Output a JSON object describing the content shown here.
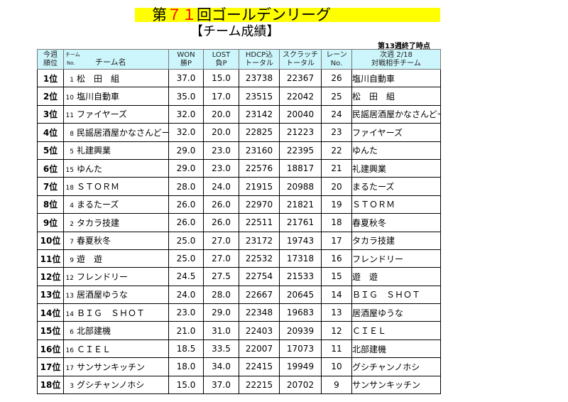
{
  "header": {
    "title_prefix": "第",
    "title_number": "７１",
    "title_suffix": "回ゴールデンリーグ",
    "subtitle": "【チーム成績】",
    "as_of": "第13週終了時点",
    "accent_color": "#ff0000",
    "title_bg": "#ffff00"
  },
  "table": {
    "header_bg": "#ccf6fb",
    "columns": {
      "rank": [
        "今週",
        "順位"
      ],
      "team_no": [
        "チーム",
        "No."
      ],
      "team_name": "チーム名",
      "won": [
        "WON",
        "勝P"
      ],
      "lost": [
        "LOST",
        "負P"
      ],
      "hdcp": [
        "HDCP込",
        "トータル"
      ],
      "scratch": [
        "スクラッチ",
        "トータル"
      ],
      "lane": [
        "レーン",
        "No."
      ],
      "opponent": [
        "次週 2/18",
        "対戦相手チーム"
      ]
    },
    "rows": [
      {
        "rank": "1位",
        "no": "1",
        "name": "松　田　組",
        "won": "37.0",
        "lost": "15.0",
        "hdcp": "23738",
        "scratch": "22367",
        "lane": "26",
        "opponent": "塩川自動車"
      },
      {
        "rank": "2位",
        "no": "10",
        "name": "塩川自動車",
        "won": "35.0",
        "lost": "17.0",
        "hdcp": "23515",
        "scratch": "22042",
        "lane": "25",
        "opponent": "松　田　組"
      },
      {
        "rank": "3位",
        "no": "11",
        "name": "ファイヤーズ",
        "won": "32.0",
        "lost": "20.0",
        "hdcp": "23142",
        "scratch": "20040",
        "lane": "24",
        "opponent": "民謡居酒屋かなさんどー"
      },
      {
        "rank": "4位",
        "no": "8",
        "name": "民謡居酒屋かなさんどー",
        "won": "32.0",
        "lost": "20.0",
        "hdcp": "22825",
        "scratch": "21223",
        "lane": "23",
        "opponent": "ファイヤーズ"
      },
      {
        "rank": "5位",
        "no": "5",
        "name": "礼建興業",
        "won": "29.0",
        "lost": "23.0",
        "hdcp": "23160",
        "scratch": "22395",
        "lane": "22",
        "opponent": "ゆんた"
      },
      {
        "rank": "6位",
        "no": "15",
        "name": "ゆんた",
        "won": "29.0",
        "lost": "23.0",
        "hdcp": "22576",
        "scratch": "18817",
        "lane": "21",
        "opponent": "礼建興業"
      },
      {
        "rank": "7位",
        "no": "18",
        "name": "ＳＴＯＲＭ",
        "won": "28.0",
        "lost": "24.0",
        "hdcp": "21915",
        "scratch": "20988",
        "lane": "20",
        "opponent": "まるたーズ"
      },
      {
        "rank": "8位",
        "no": "4",
        "name": "まるたーズ",
        "won": "26.0",
        "lost": "26.0",
        "hdcp": "22970",
        "scratch": "21821",
        "lane": "19",
        "opponent": "ＳＴＯＲＭ"
      },
      {
        "rank": "9位",
        "no": "2",
        "name": "タカラ技建",
        "won": "26.0",
        "lost": "26.0",
        "hdcp": "22511",
        "scratch": "21761",
        "lane": "18",
        "opponent": "春夏秋冬"
      },
      {
        "rank": "10位",
        "no": "7",
        "name": "春夏秋冬",
        "won": "25.0",
        "lost": "27.0",
        "hdcp": "23172",
        "scratch": "19743",
        "lane": "17",
        "opponent": "タカラ技建"
      },
      {
        "rank": "11位",
        "no": "9",
        "name": "遊　遊",
        "won": "25.0",
        "lost": "27.0",
        "hdcp": "22532",
        "scratch": "17318",
        "lane": "16",
        "opponent": "フレンドリー"
      },
      {
        "rank": "12位",
        "no": "12",
        "name": "フレンドリー",
        "won": "24.5",
        "lost": "27.5",
        "hdcp": "22754",
        "scratch": "21533",
        "lane": "15",
        "opponent": "遊　遊"
      },
      {
        "rank": "13位",
        "no": "13",
        "name": "居酒屋ゆうな",
        "won": "24.0",
        "lost": "28.0",
        "hdcp": "22667",
        "scratch": "20645",
        "lane": "14",
        "opponent": "ＢＩＧ　ＳＨＯＴ"
      },
      {
        "rank": "14位",
        "no": "14",
        "name": "ＢＩＧ　ＳＨＯＴ",
        "won": "23.0",
        "lost": "29.0",
        "hdcp": "22348",
        "scratch": "19683",
        "lane": "13",
        "opponent": "居酒屋ゆうな"
      },
      {
        "rank": "15位",
        "no": "6",
        "name": "北部建機",
        "won": "21.0",
        "lost": "31.0",
        "hdcp": "22403",
        "scratch": "20939",
        "lane": "12",
        "opponent": "ＣＩＥＬ"
      },
      {
        "rank": "16位",
        "no": "16",
        "name": "ＣＩＥＬ",
        "won": "18.5",
        "lost": "33.5",
        "hdcp": "22007",
        "scratch": "17073",
        "lane": "11",
        "opponent": "北部建機"
      },
      {
        "rank": "17位",
        "no": "17",
        "name": "サンサンキッチン",
        "won": "18.0",
        "lost": "34.0",
        "hdcp": "22415",
        "scratch": "19949",
        "lane": "10",
        "opponent": "グシチャンノホシ"
      },
      {
        "rank": "18位",
        "no": "3",
        "name": "グシチャンノホシ",
        "won": "15.0",
        "lost": "37.0",
        "hdcp": "22215",
        "scratch": "20702",
        "lane": "9",
        "opponent": "サンサンキッチン"
      }
    ]
  }
}
